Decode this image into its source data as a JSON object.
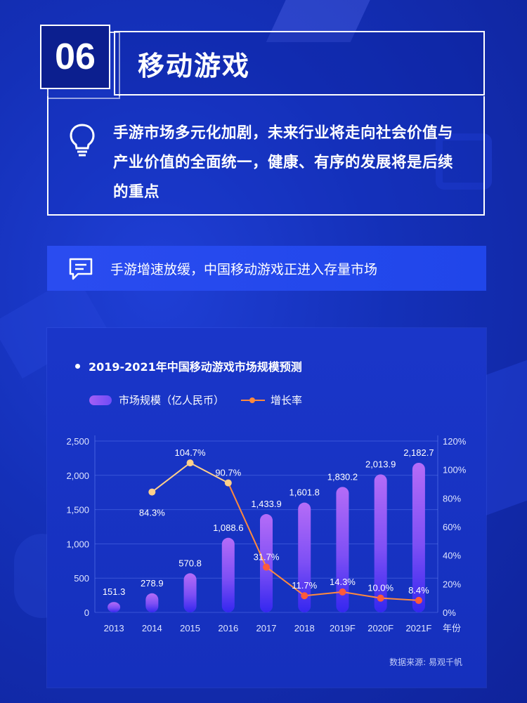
{
  "section": {
    "number": "06",
    "title": "移动游戏",
    "intro": "手游市场多元化加剧，未来行业将走向社会价值与产业价值的全面统一，健康、有序的发展将是后续的重点"
  },
  "subtitle": "手游增速放缓，中国移动游戏正进入存量市场",
  "icons": {
    "intro": "lightbulb-icon",
    "subtitle": "chat-bubble-icon"
  },
  "colors": {
    "bar_top": "#b26bf6",
    "bar_bottom": "#3a2cf0",
    "line": "#ff8a3d",
    "line_upper": "#ffd08a",
    "marker_low": "#ff5a3a"
  },
  "chart_data": {
    "type": "bar",
    "title": "2019-2021年中国移动游戏市场规模预测",
    "categories": [
      "2013",
      "2014",
      "2015",
      "2016",
      "2017",
      "2018",
      "2019F",
      "2020F",
      "2021F"
    ],
    "x_unit": "年份",
    "series": [
      {
        "name": "市场规模（亿人民币）",
        "type": "bar",
        "axis": "left",
        "values": [
          151.3,
          278.9,
          570.8,
          1088.6,
          1433.9,
          1601.8,
          1830.2,
          2013.9,
          2182.7
        ],
        "labels": [
          "151.3",
          "278.9",
          "570.8",
          "1,088.6",
          "1,433.9",
          "1,601.8",
          "1,830.2",
          "2,013.9",
          "2,182.7"
        ]
      },
      {
        "name": "增长率",
        "type": "line",
        "axis": "right",
        "values": [
          null,
          84.3,
          104.7,
          90.7,
          31.7,
          11.7,
          14.3,
          10.0,
          8.4
        ],
        "labels": [
          "",
          "84.3%",
          "104.7%",
          "90.7%",
          "31.7%",
          "11.7%",
          "14.3%",
          "10.0%",
          "8.4%"
        ]
      }
    ],
    "y_left": {
      "ylim": [
        0,
        2500
      ],
      "ticks": [
        "0",
        "500",
        "1,000",
        "1,500",
        "2,000",
        "2,500"
      ]
    },
    "y_right": {
      "ylim": [
        0,
        120
      ],
      "ticks": [
        "0%",
        "20%",
        "40%",
        "60%",
        "80%",
        "100%",
        "120%"
      ]
    },
    "grid": true,
    "legend": "top-left",
    "source": "数据来源: 易观千帆"
  }
}
